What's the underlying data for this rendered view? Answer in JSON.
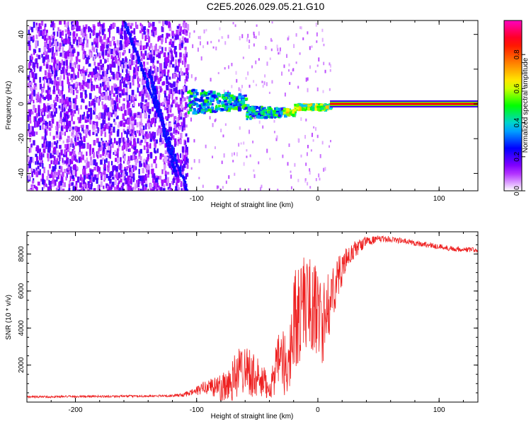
{
  "chart_data": [
    {
      "type": "heatmap",
      "title": "C2E5.2026.029.05.21.G10",
      "xlabel": "Height of straight line (km)",
      "ylabel": "Frequency (Hz)",
      "xlim": [
        -240,
        132
      ],
      "ylim": [
        -50,
        48
      ],
      "xticks": [
        -200,
        -100,
        0,
        100
      ],
      "yticks": [
        -40,
        -20,
        0,
        20,
        40
      ],
      "xtick_labels": [
        "-200",
        "-100",
        "0",
        "100"
      ],
      "ytick_labels": [
        "-40",
        "-20",
        "0",
        "20",
        "40"
      ],
      "colorbar": {
        "label": "Normalized spectral amplitude",
        "range": [
          0,
          1
        ],
        "ticks": [
          0.0,
          0.2,
          0.4,
          0.6,
          0.8
        ],
        "tick_labels": [
          "0.0",
          "0.2",
          "0.4",
          "0.6",
          "0.8"
        ],
        "colors": [
          "#ffffff",
          "#a000ff",
          "#0000ff",
          "#00c8ff",
          "#00ff00",
          "#ffff00",
          "#ff8000",
          "#ff0000",
          "#ff00c0"
        ]
      },
      "features": {
        "noise_region_x": [
          -240,
          -108
        ],
        "diagonal_tracks": [
          {
            "x": [
              -160,
              -108
            ],
            "y": [
              48,
              -50
            ]
          },
          {
            "x": [
              -140,
              -118
            ],
            "y": [
              20,
              -40
            ]
          }
        ],
        "transition_region_x": [
          -108,
          10
        ],
        "steady_line": {
          "x": [
            10,
            132
          ],
          "frequency": 0,
          "amplitude": 1.0
        }
      }
    },
    {
      "type": "line",
      "xlabel": "Height of straight line (km)",
      "ylabel": "SNR (10 * v/v)",
      "xlim": [
        -240,
        132
      ],
      "ylim": [
        0,
        9200
      ],
      "xticks": [
        -200,
        -100,
        0,
        100
      ],
      "yticks": [
        2000,
        4000,
        6000,
        8000
      ],
      "xtick_labels": [
        "-200",
        "-100",
        "0",
        "100"
      ],
      "ytick_labels": [
        "2000",
        "4000",
        "6000",
        "8000"
      ],
      "color": "#ee2020",
      "series": [
        {
          "name": "SNR",
          "x": [
            -240,
            -200,
            -150,
            -120,
            -110,
            -100,
            -90,
            -80,
            -70,
            -60,
            -50,
            -40,
            -30,
            -25,
            -20,
            -15,
            -10,
            -5,
            0,
            5,
            10,
            15,
            20,
            25,
            30,
            40,
            50,
            60,
            70,
            80,
            90,
            100,
            110,
            120,
            132
          ],
          "y": [
            280,
            300,
            320,
            340,
            400,
            600,
            900,
            700,
            1300,
            2000,
            1200,
            800,
            2500,
            1500,
            4500,
            4800,
            5500,
            5200,
            4800,
            4300,
            5400,
            6500,
            7200,
            7800,
            8200,
            8700,
            8800,
            8800,
            8700,
            8600,
            8500,
            8400,
            8300,
            8250,
            8200
          ],
          "envelope": [
            60,
            60,
            60,
            60,
            120,
            250,
            450,
            900,
            1300,
            1400,
            1200,
            700,
            1800,
            1600,
            2600,
            2900,
            2700,
            2500,
            2500,
            2300,
            1700,
            1300,
            900,
            650,
            500,
            250,
            180,
            170,
            160,
            160,
            160,
            160,
            150,
            150,
            150
          ]
        }
      ]
    }
  ]
}
